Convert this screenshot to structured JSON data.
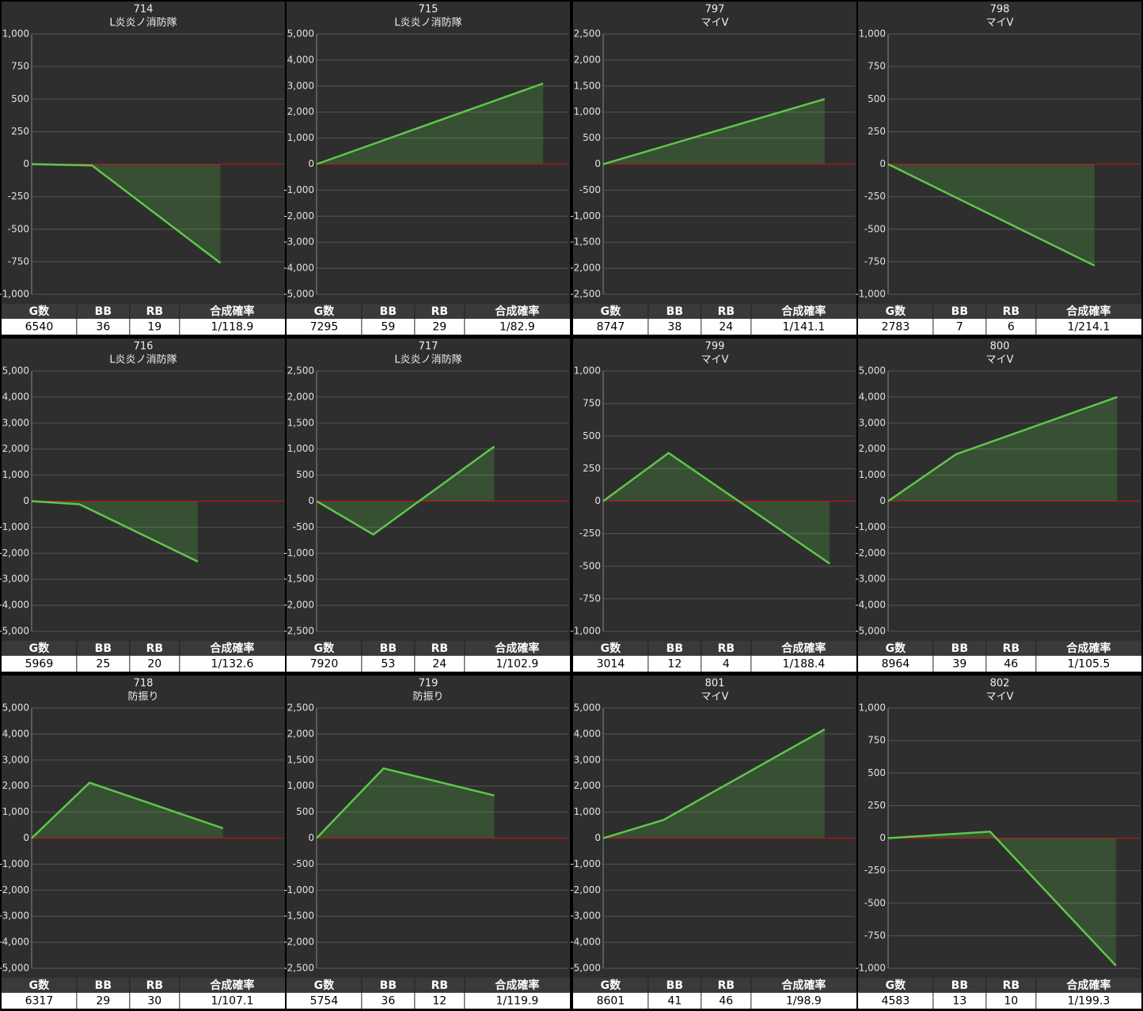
{
  "chart_data": [
    {
      "type": "line",
      "title": "714",
      "subtitle": "L炎炎ノ消防隊",
      "color": "#5dc84a",
      "xlim": [
        0,
        100
      ],
      "x": [
        0,
        24,
        75
      ],
      "values": [
        0,
        -10,
        -760
      ],
      "ylim": [
        -1000,
        1000
      ],
      "yticks": [
        {
          "value": -1000,
          "label": "-1,000"
        },
        -750,
        -500,
        -250,
        0,
        250,
        500,
        750,
        {
          "value": 1000,
          "label": "1,000"
        }
      ],
      "table": {
        "headers": [
          "G数",
          "BB",
          "RB",
          "合成確率"
        ],
        "row": [
          6540,
          36,
          19,
          "1/118.9"
        ]
      }
    },
    {
      "type": "line",
      "title": "715",
      "subtitle": "L炎炎ノ消防隊",
      "color": "#5dc84a",
      "xlim": [
        0,
        100
      ],
      "x": [
        0,
        90
      ],
      "values": [
        0,
        3100
      ],
      "ylim": [
        -5000,
        5000
      ],
      "yticks": [
        {
          "value": -5000,
          "label": "-5,000"
        },
        {
          "value": -4000,
          "label": "-4,000"
        },
        {
          "value": -3000,
          "label": "-3,000"
        },
        {
          "value": -2000,
          "label": "-2,000"
        },
        {
          "value": -1000,
          "label": "-1,000"
        },
        0,
        {
          "value": 1000,
          "label": "1,000"
        },
        {
          "value": 2000,
          "label": "2,000"
        },
        {
          "value": 3000,
          "label": "3,000"
        },
        {
          "value": 4000,
          "label": "4,000"
        },
        {
          "value": 5000,
          "label": "5,000"
        }
      ],
      "table": {
        "headers": [
          "G数",
          "BB",
          "RB",
          "合成確率"
        ],
        "row": [
          7295,
          59,
          29,
          "1/82.9"
        ]
      }
    },
    {
      "type": "line",
      "title": "797",
      "subtitle": "マイV",
      "color": "#5dc84a",
      "xlim": [
        0,
        100
      ],
      "x": [
        0,
        88
      ],
      "values": [
        0,
        1250
      ],
      "ylim": [
        -2500,
        2500
      ],
      "yticks": [
        {
          "value": -2500,
          "label": "-2,500"
        },
        {
          "value": -2000,
          "label": "-2,000"
        },
        {
          "value": -1500,
          "label": "-1,500"
        },
        {
          "value": -1000,
          "label": "-1,000"
        },
        -500,
        0,
        500,
        {
          "value": 1000,
          "label": "1,000"
        },
        {
          "value": 1500,
          "label": "1,500"
        },
        {
          "value": 2000,
          "label": "2,000"
        },
        {
          "value": 2500,
          "label": "2,500"
        }
      ],
      "table": {
        "headers": [
          "G数",
          "BB",
          "RB",
          "合成確率"
        ],
        "row": [
          8747,
          38,
          24,
          "1/141.1"
        ]
      }
    },
    {
      "type": "line",
      "title": "798",
      "subtitle": "マイV",
      "color": "#5dc84a",
      "xlim": [
        0,
        100
      ],
      "x": [
        0,
        82
      ],
      "values": [
        0,
        -780
      ],
      "ylim": [
        -1000,
        1000
      ],
      "yticks": [
        {
          "value": -1000,
          "label": "-1,000"
        },
        -750,
        -500,
        -250,
        0,
        250,
        500,
        750,
        {
          "value": 1000,
          "label": "1,000"
        }
      ],
      "table": {
        "headers": [
          "G数",
          "BB",
          "RB",
          "合成確率"
        ],
        "row": [
          2783,
          7,
          6,
          "1/214.1"
        ]
      }
    },
    {
      "type": "line",
      "title": "716",
      "subtitle": "L炎炎ノ消防隊",
      "color": "#5dc84a",
      "xlim": [
        0,
        100
      ],
      "x": [
        0,
        19,
        66
      ],
      "values": [
        0,
        -120,
        -2320
      ],
      "ylim": [
        -5000,
        5000
      ],
      "yticks": [
        {
          "value": -5000,
          "label": "-5,000"
        },
        {
          "value": -4000,
          "label": "-4,000"
        },
        {
          "value": -3000,
          "label": "-3,000"
        },
        {
          "value": -2000,
          "label": "-2,000"
        },
        {
          "value": -1000,
          "label": "-1,000"
        },
        0,
        {
          "value": 1000,
          "label": "1,000"
        },
        {
          "value": 2000,
          "label": "2,000"
        },
        {
          "value": 3000,
          "label": "3,000"
        },
        {
          "value": 4000,
          "label": "4,000"
        },
        {
          "value": 5000,
          "label": "5,000"
        }
      ],
      "table": {
        "headers": [
          "G数",
          "BB",
          "RB",
          "合成確率"
        ],
        "row": [
          5969,
          25,
          20,
          "1/132.6"
        ]
      }
    },
    {
      "type": "line",
      "title": "717",
      "subtitle": "L炎炎ノ消防隊",
      "color": "#5dc84a",
      "xlim": [
        0,
        100
      ],
      "x": [
        0,
        22.5,
        70.6
      ],
      "values": [
        0,
        -640,
        1050
      ],
      "ylim": [
        -2500,
        2500
      ],
      "yticks": [
        {
          "value": -2500,
          "label": "-2,500"
        },
        {
          "value": -2000,
          "label": "-2,000"
        },
        {
          "value": -1500,
          "label": "-1,500"
        },
        {
          "value": -1000,
          "label": "-1,000"
        },
        -500,
        0,
        500,
        {
          "value": 1000,
          "label": "1,000"
        },
        {
          "value": 1500,
          "label": "1,500"
        },
        {
          "value": 2000,
          "label": "2,000"
        },
        {
          "value": 2500,
          "label": "2,500"
        }
      ],
      "table": {
        "headers": [
          "G数",
          "BB",
          "RB",
          "合成確率"
        ],
        "row": [
          7920,
          53,
          24,
          "1/102.9"
        ]
      }
    },
    {
      "type": "line",
      "title": "799",
      "subtitle": "マイV",
      "color": "#5dc84a",
      "xlim": [
        0,
        100
      ],
      "x": [
        0,
        26,
        90
      ],
      "values": [
        0,
        370,
        -480
      ],
      "ylim": [
        -1000,
        1000
      ],
      "yticks": [
        {
          "value": -1000,
          "label": "-1,000"
        },
        -750,
        -500,
        -250,
        0,
        250,
        500,
        750,
        {
          "value": 1000,
          "label": "1,000"
        }
      ],
      "table": {
        "headers": [
          "G数",
          "BB",
          "RB",
          "合成確率"
        ],
        "row": [
          3014,
          12,
          4,
          "1/188.4"
        ]
      }
    },
    {
      "type": "line",
      "title": "800",
      "subtitle": "マイV",
      "color": "#5dc84a",
      "xlim": [
        0,
        100
      ],
      "x": [
        0,
        27,
        91
      ],
      "values": [
        0,
        1800,
        4000
      ],
      "ylim": [
        -5000,
        5000
      ],
      "yticks": [
        {
          "value": -5000,
          "label": "-5,000"
        },
        {
          "value": -4000,
          "label": "-4,000"
        },
        {
          "value": -3000,
          "label": "-3,000"
        },
        {
          "value": -2000,
          "label": "-2,000"
        },
        {
          "value": -1000,
          "label": "-1,000"
        },
        0,
        {
          "value": 1000,
          "label": "1,000"
        },
        {
          "value": 2000,
          "label": "2,000"
        },
        {
          "value": 3000,
          "label": "3,000"
        },
        {
          "value": 4000,
          "label": "4,000"
        },
        {
          "value": 5000,
          "label": "5,000"
        }
      ],
      "table": {
        "headers": [
          "G数",
          "BB",
          "RB",
          "合成確率"
        ],
        "row": [
          8964,
          39,
          46,
          "1/105.5"
        ]
      }
    },
    {
      "type": "line",
      "title": "718",
      "subtitle": "防振り",
      "color": "#5dc84a",
      "xlim": [
        0,
        100
      ],
      "x": [
        0,
        23,
        76
      ],
      "values": [
        0,
        2130,
        380
      ],
      "ylim": [
        -5000,
        5000
      ],
      "yticks": [
        {
          "value": -5000,
          "label": "-5,000"
        },
        {
          "value": -4000,
          "label": "-4,000"
        },
        {
          "value": -3000,
          "label": "-3,000"
        },
        {
          "value": -2000,
          "label": "-2,000"
        },
        {
          "value": -1000,
          "label": "-1,000"
        },
        0,
        {
          "value": 1000,
          "label": "1,000"
        },
        {
          "value": 2000,
          "label": "2,000"
        },
        {
          "value": 3000,
          "label": "3,000"
        },
        {
          "value": 4000,
          "label": "4,000"
        },
        {
          "value": 5000,
          "label": "5,000"
        }
      ],
      "table": {
        "headers": [
          "G数",
          "BB",
          "RB",
          "合成確率"
        ],
        "row": [
          6317,
          29,
          30,
          "1/107.1"
        ]
      }
    },
    {
      "type": "line",
      "title": "719",
      "subtitle": "防振り",
      "color": "#5dc84a",
      "xlim": [
        0,
        100
      ],
      "x": [
        0,
        26.6,
        70.6
      ],
      "values": [
        0,
        1340,
        820
      ],
      "ylim": [
        -2500,
        2500
      ],
      "yticks": [
        {
          "value": -2500,
          "label": "-2,500"
        },
        {
          "value": -2000,
          "label": "-2,000"
        },
        {
          "value": -1500,
          "label": "-1,500"
        },
        {
          "value": -1000,
          "label": "-1,000"
        },
        -500,
        0,
        500,
        {
          "value": 1000,
          "label": "1,000"
        },
        {
          "value": 1500,
          "label": "1,500"
        },
        {
          "value": 2000,
          "label": "2,000"
        },
        {
          "value": 2500,
          "label": "2,500"
        }
      ],
      "table": {
        "headers": [
          "G数",
          "BB",
          "RB",
          "合成確率"
        ],
        "row": [
          5754,
          36,
          12,
          "1/119.9"
        ]
      }
    },
    {
      "type": "line",
      "title": "801",
      "subtitle": "マイV",
      "color": "#5dc84a",
      "xlim": [
        0,
        100
      ],
      "x": [
        0,
        24,
        88
      ],
      "values": [
        0,
        700,
        4180
      ],
      "ylim": [
        -5000,
        5000
      ],
      "yticks": [
        {
          "value": -5000,
          "label": "-5,000"
        },
        {
          "value": -4000,
          "label": "-4,000"
        },
        {
          "value": -3000,
          "label": "-3,000"
        },
        {
          "value": -2000,
          "label": "-2,000"
        },
        {
          "value": -1000,
          "label": "-1,000"
        },
        0,
        {
          "value": 1000,
          "label": "1,000"
        },
        {
          "value": 2000,
          "label": "2,000"
        },
        {
          "value": 3000,
          "label": "3,000"
        },
        {
          "value": 4000,
          "label": "4,000"
        },
        {
          "value": 5000,
          "label": "5,000"
        }
      ],
      "table": {
        "headers": [
          "G数",
          "BB",
          "RB",
          "合成確率"
        ],
        "row": [
          8601,
          41,
          46,
          "1/98.9"
        ]
      }
    },
    {
      "type": "line",
      "title": "802",
      "subtitle": "マイV",
      "color": "#5dc84a",
      "xlim": [
        0,
        100
      ],
      "x": [
        0,
        40.5,
        90.5
      ],
      "values": [
        0,
        50,
        -980
      ],
      "ylim": [
        -1000,
        1000
      ],
      "yticks": [
        {
          "value": -1000,
          "label": "-1,000"
        },
        -750,
        -500,
        -250,
        0,
        250,
        500,
        750,
        {
          "value": 1000,
          "label": "1,000"
        }
      ],
      "table": {
        "headers": [
          "G数",
          "BB",
          "RB",
          "合成確率"
        ],
        "row": [
          4583,
          13,
          10,
          "1/199.3"
        ]
      }
    }
  ]
}
